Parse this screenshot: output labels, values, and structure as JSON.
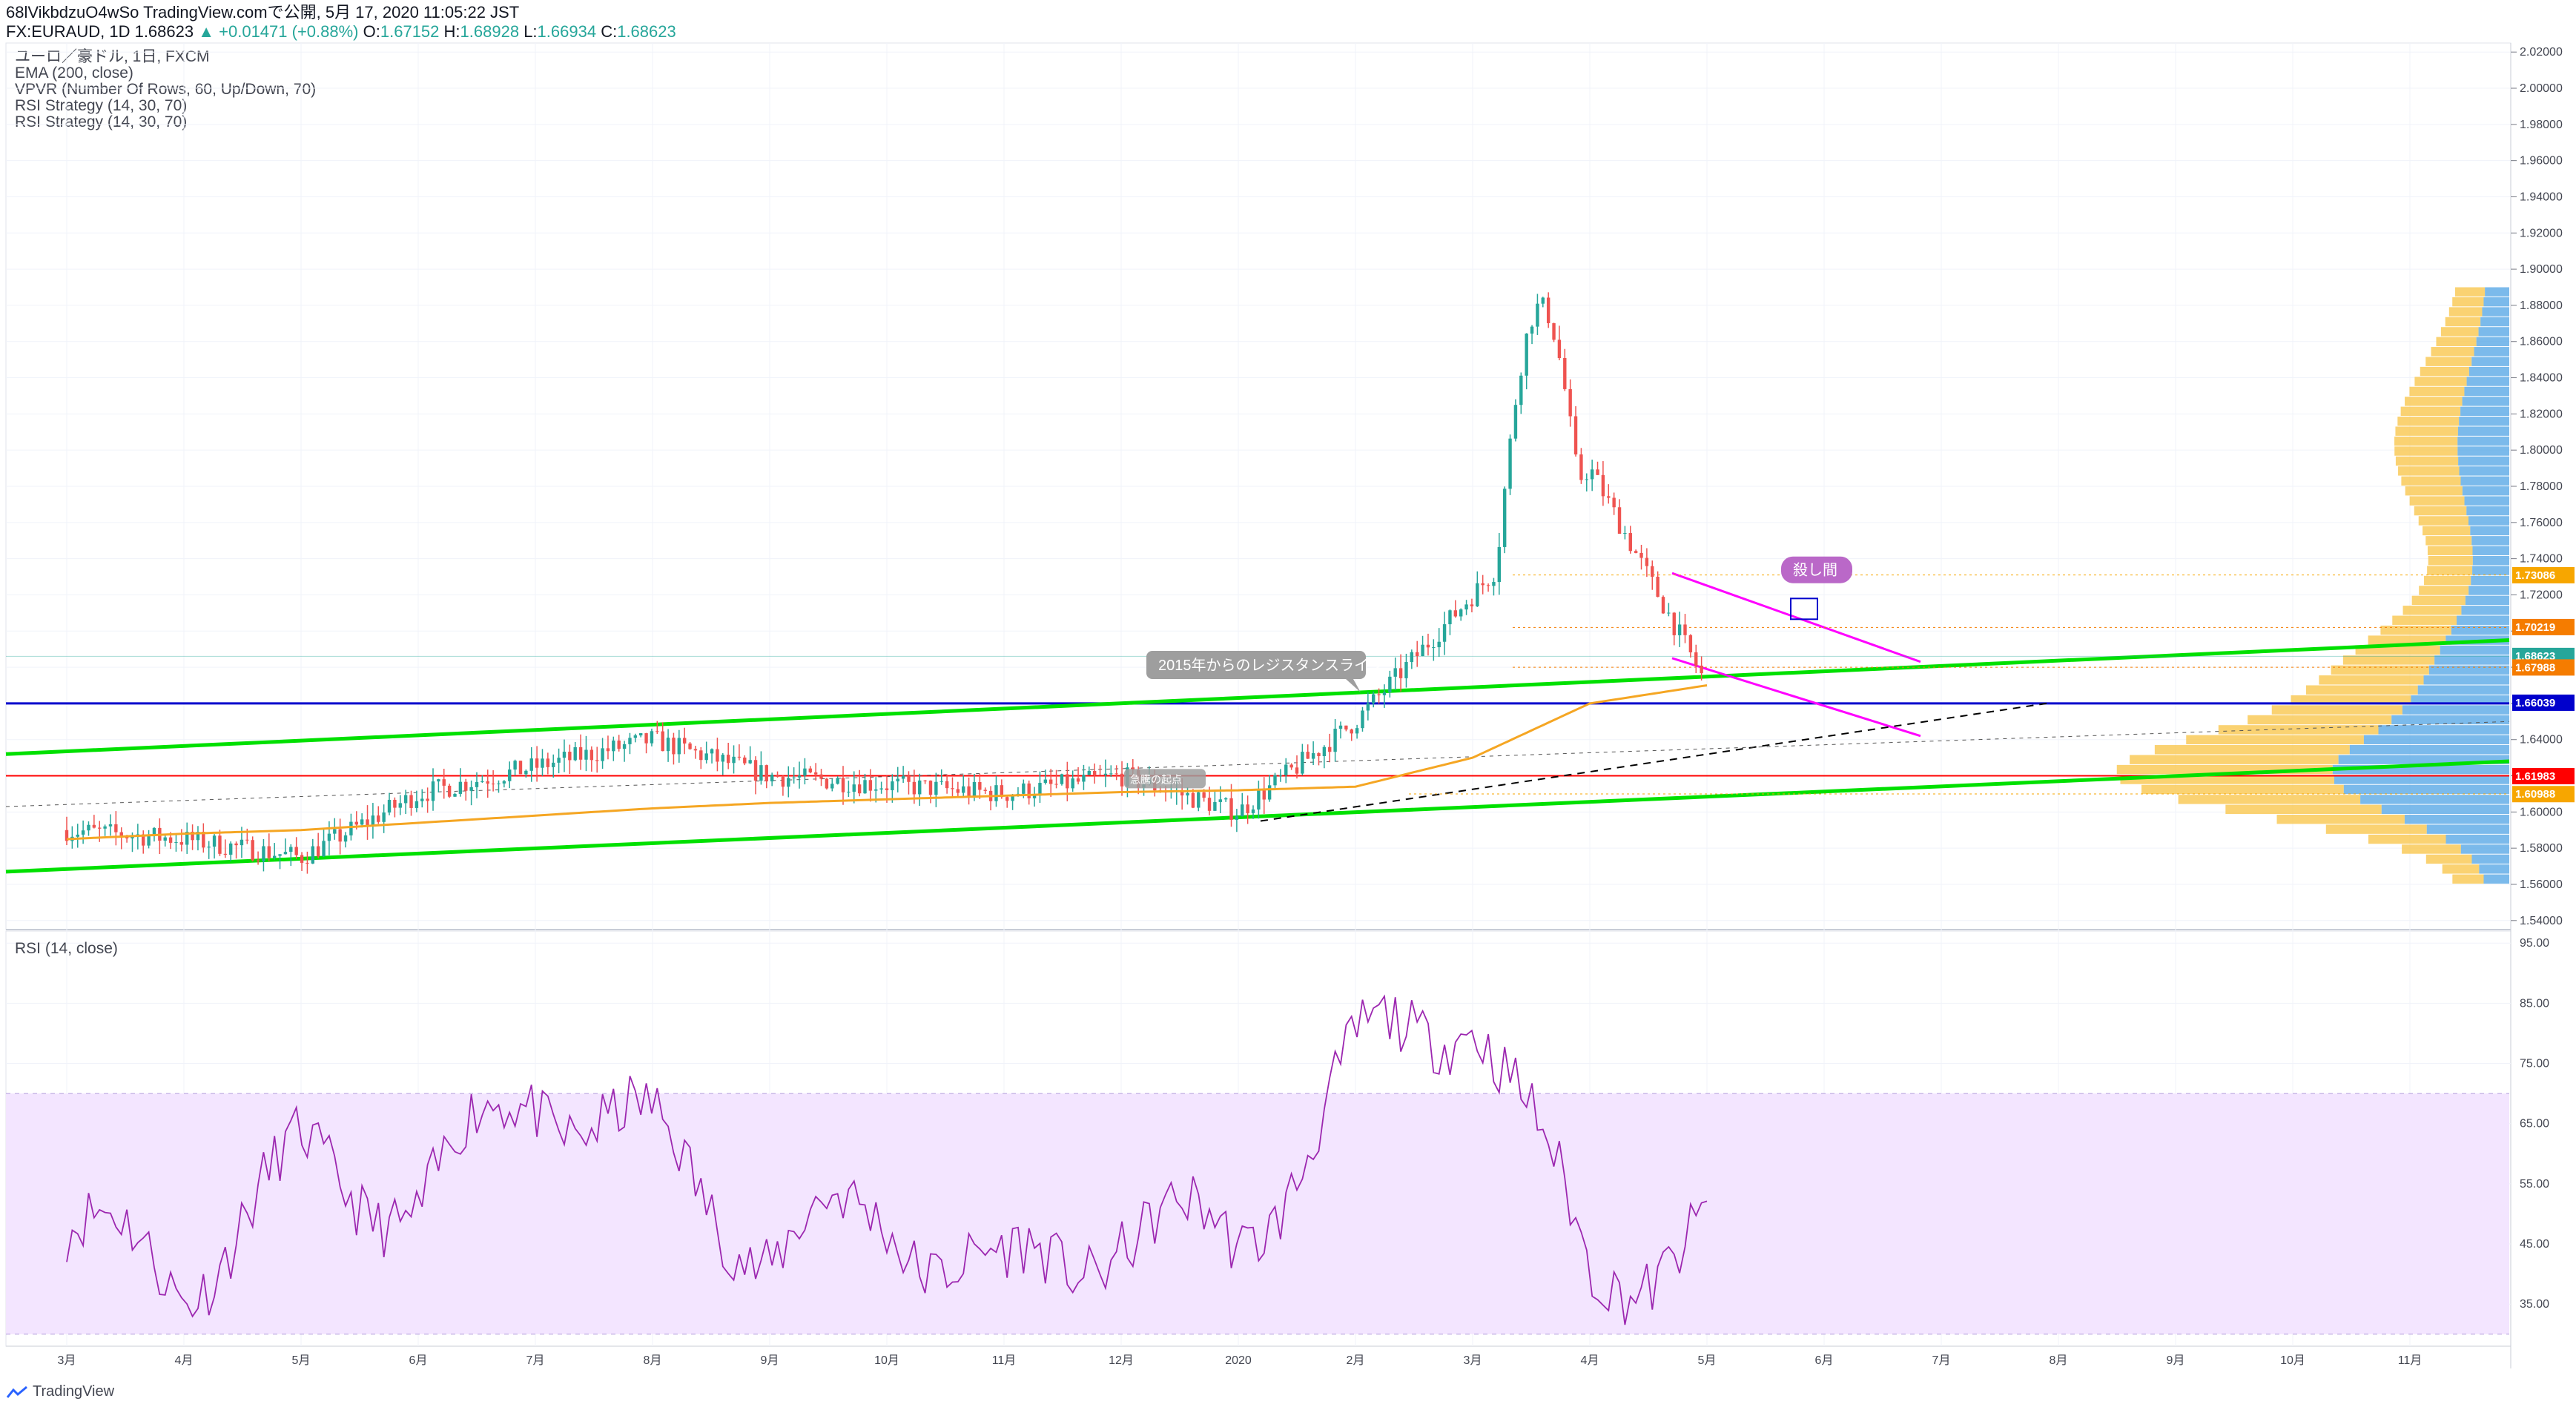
{
  "header": {
    "line1": "68lVikbdzuO4wSo TradingView.comで公開, 5月 17, 2020 11:05:22 JST",
    "symbol": "FX:EURAUD, 1D 1.68623",
    "change": "+0.01471 (+0.88%)",
    "o_label": "O:",
    "o_value": "1.67152",
    "h_label": "H:",
    "h_value": "1.68928",
    "l_label": "L:",
    "l_value": "1.66934",
    "c_label": "C:",
    "c_value": "1.68623"
  },
  "indicators": [
    "ユーロ／豪ドル, 1日, FXCM",
    "EMA (200, close)",
    "VPVR (Number Of Rows, 60, Up/Down, 70)",
    "RSI Strategy (14, 30, 70)",
    "RSI Strategy (14, 30, 70)"
  ],
  "rsi_title": "RSI (14, close)",
  "footer": {
    "brand": "TradingView"
  },
  "colors": {
    "up": "#26a69a",
    "down": "#ef5350",
    "ema": "#f5a623",
    "channel": "#00e000",
    "magenta": "#ff00ff",
    "blue_line": "#0000cc",
    "red_line": "#ff0000",
    "rsi": "#9c27b0",
    "rsi_band": "#f3e5ff",
    "vp_up": "#5aa9e6",
    "vp_down": "#f9c74f"
  },
  "annotations": {
    "resistance": "2015年からのレジスタンスライン",
    "sell": "殺し間",
    "small_label": "急騰の起点"
  },
  "price_axis": {
    "ticks": [
      "2.02000",
      "2.00000",
      "1.98000",
      "1.96000",
      "1.94000",
      "1.92000",
      "1.90000",
      "1.88000",
      "1.86000",
      "1.84000",
      "1.82000",
      "1.80000",
      "1.78000",
      "1.76000",
      "1.74000",
      "1.72000",
      "1.70000",
      "1.68000",
      "1.66000",
      "1.64000",
      "1.62000",
      "1.60000",
      "1.58000",
      "1.56000",
      "1.54000"
    ],
    "tags": [
      {
        "text": "1.73086",
        "color": "#f7a600"
      },
      {
        "text": "1.70219",
        "color": "#f57c00"
      },
      {
        "text": "1.68623",
        "color": "#26a69a"
      },
      {
        "text": "1.67988",
        "color": "#f57c00"
      },
      {
        "text": "1.66039",
        "color": "#0000cc"
      },
      {
        "text": "1.61983",
        "color": "#ff0000"
      },
      {
        "text": "1.60988",
        "color": "#f7a600"
      }
    ]
  },
  "rsi_axis": {
    "ticks": [
      "95.00",
      "85.00",
      "75.00",
      "65.00",
      "55.00",
      "45.00",
      "35.00"
    ]
  },
  "time_axis": {
    "ticks": [
      "3月",
      "4月",
      "5月",
      "6月",
      "7月",
      "8月",
      "9月",
      "10月",
      "11月",
      "12月",
      "2020",
      "2月",
      "3月",
      "4月",
      "5月",
      "6月",
      "7月",
      "8月",
      "9月",
      "10月",
      "11月"
    ]
  },
  "chart_data": {
    "type": "line",
    "title": "ユーロ／豪ドル, 1日, FXCM",
    "ylim": [
      1.535,
      2.025
    ],
    "series": [
      {
        "name": "ユーロ／豪ドル",
        "x": [
          "3月",
          "4月",
          "5月",
          "6月",
          "7月",
          "8月",
          "9月",
          "10月",
          "11月",
          "12月",
          "2020",
          "2月",
          "3月",
          "4月",
          "5月"
        ],
        "values": [
          1.59,
          1.585,
          1.575,
          1.61,
          1.625,
          1.64,
          1.62,
          1.615,
          1.61,
          1.62,
          1.6,
          1.65,
          1.72,
          1.79,
          1.67
        ]
      },
      {
        "name": "EMA (200, close)",
        "x": [
          "3月",
          "4月",
          "5月",
          "6月",
          "7月",
          "8月",
          "9月",
          "10月",
          "11月",
          "12月",
          "2020",
          "2月",
          "3月",
          "4月",
          "5月"
        ],
        "values": [
          1.585,
          1.588,
          1.59,
          1.594,
          1.598,
          1.602,
          1.605,
          1.607,
          1.609,
          1.611,
          1.612,
          1.614,
          1.63,
          1.66,
          1.67
        ]
      }
    ],
    "rsi": {
      "ylim": [
        28,
        97
      ],
      "band": [
        30,
        70
      ],
      "x": [
        "3月",
        "4月",
        "5月",
        "6月",
        "7月",
        "8月",
        "9月",
        "10月",
        "11月",
        "12月",
        "2020",
        "2月",
        "3月",
        "4月",
        "5月"
      ],
      "values": [
        47,
        40,
        58,
        52,
        71,
        62,
        44,
        50,
        38,
        48,
        45,
        75,
        86,
        40,
        46
      ]
    }
  }
}
